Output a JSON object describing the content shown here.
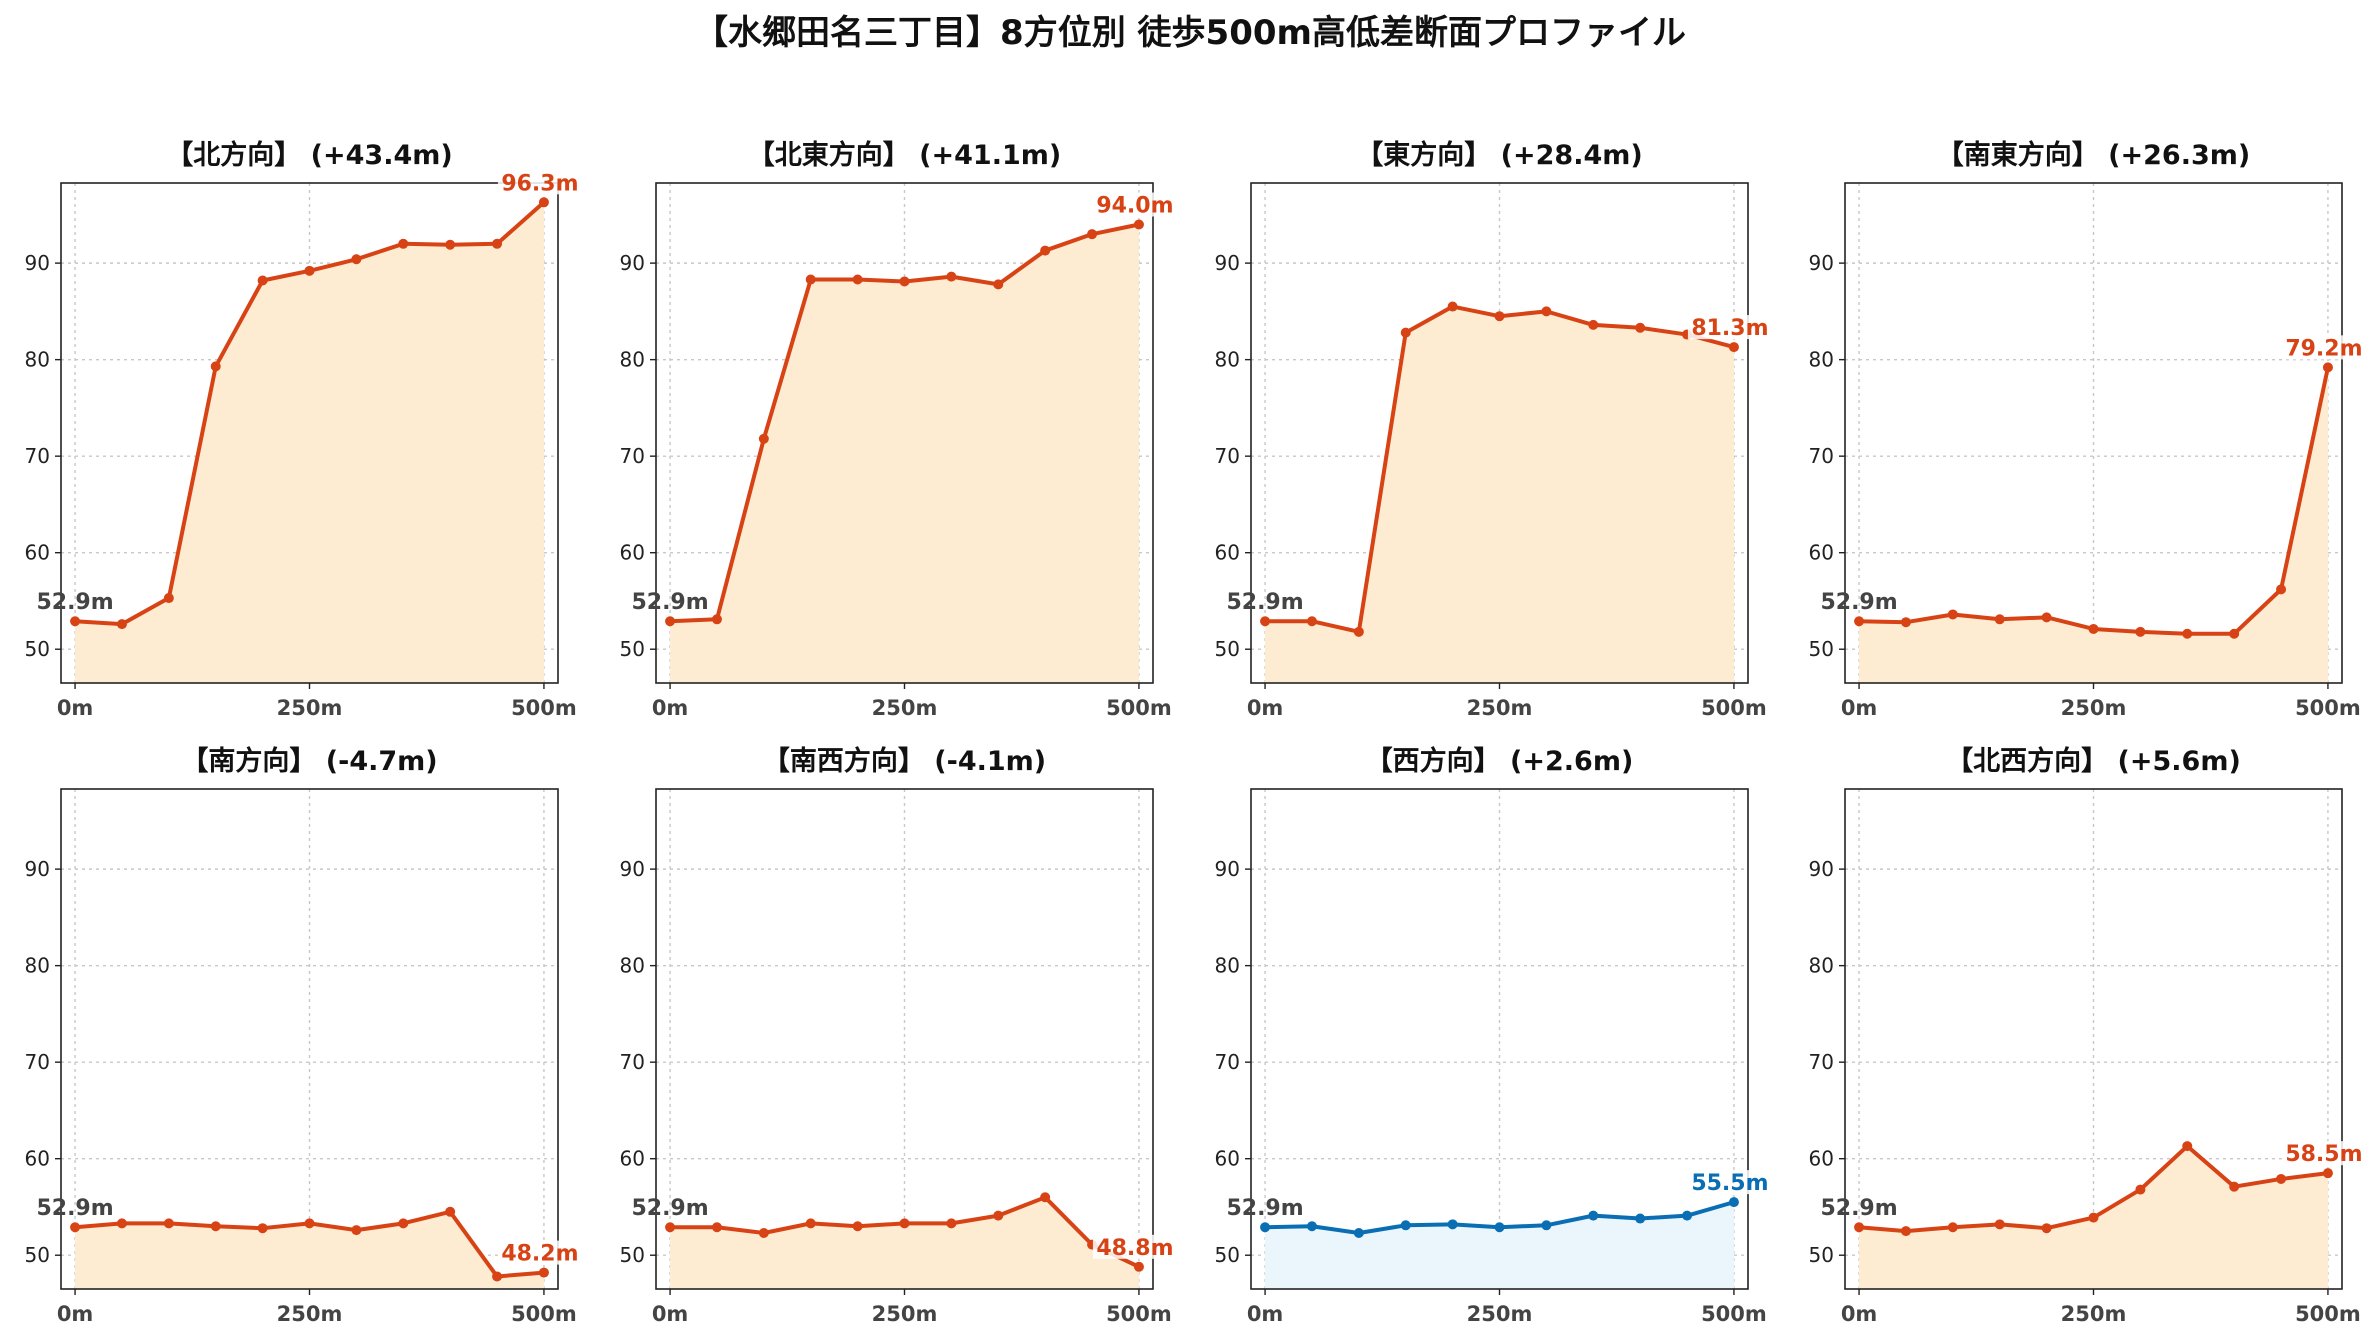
{
  "title": "【水郷田名三丁目】8方位別 徒歩500m高低差断面プロファイル",
  "colors": {
    "rise_line": "#d84315",
    "rise_fill": "#fdecd2",
    "flat_line": "#0a6eb4",
    "flat_fill": "#eaf6fc",
    "start_label": "#444444"
  },
  "chart_data": [
    {
      "type": "area",
      "title": "【北方向】 (+43.4m)",
      "color_key": "rise",
      "fill": true,
      "x": [
        0,
        50,
        100,
        150,
        200,
        250,
        300,
        350,
        400,
        450,
        500
      ],
      "y": [
        52.9,
        52.6,
        55.3,
        79.3,
        88.2,
        89.2,
        90.4,
        92.0,
        91.9,
        92.0,
        96.3
      ],
      "start_label": "52.9m",
      "end_label": "96.3m",
      "xticks": [
        "0m",
        "250m",
        "500m"
      ],
      "yticks": [
        50,
        60,
        70,
        80,
        90
      ],
      "xlim": [
        -15,
        515
      ],
      "ylim": [
        46.5,
        98.3
      ],
      "grid": true
    },
    {
      "type": "area",
      "title": "【北東方向】 (+41.1m)",
      "color_key": "rise",
      "fill": true,
      "x": [
        0,
        50,
        100,
        150,
        200,
        250,
        300,
        350,
        400,
        450,
        500
      ],
      "y": [
        52.9,
        53.1,
        71.8,
        88.3,
        88.3,
        88.1,
        88.6,
        87.8,
        91.3,
        93.0,
        94.0
      ],
      "start_label": "52.9m",
      "end_label": "94.0m",
      "xticks": [
        "0m",
        "250m",
        "500m"
      ],
      "yticks": [
        50,
        60,
        70,
        80,
        90
      ],
      "xlim": [
        -15,
        515
      ],
      "ylim": [
        46.5,
        98.3
      ],
      "grid": true
    },
    {
      "type": "area",
      "title": "【東方向】 (+28.4m)",
      "color_key": "rise",
      "fill": true,
      "x": [
        0,
        50,
        100,
        150,
        200,
        250,
        300,
        350,
        400,
        450,
        500
      ],
      "y": [
        52.9,
        52.9,
        51.8,
        82.8,
        85.5,
        84.5,
        85.0,
        83.6,
        83.3,
        82.6,
        81.3
      ],
      "start_label": "52.9m",
      "end_label": "81.3m",
      "xticks": [
        "0m",
        "250m",
        "500m"
      ],
      "yticks": [
        50,
        60,
        70,
        80,
        90
      ],
      "xlim": [
        -15,
        515
      ],
      "ylim": [
        46.5,
        98.3
      ],
      "grid": true
    },
    {
      "type": "area",
      "title": "【南東方向】 (+26.3m)",
      "color_key": "rise",
      "fill": true,
      "x": [
        0,
        50,
        100,
        150,
        200,
        250,
        300,
        350,
        400,
        450,
        500
      ],
      "y": [
        52.9,
        52.8,
        53.6,
        53.1,
        53.3,
        52.1,
        51.8,
        51.6,
        51.6,
        56.2,
        79.2
      ],
      "start_label": "52.9m",
      "end_label": "79.2m",
      "xticks": [
        "0m",
        "250m",
        "500m"
      ],
      "yticks": [
        50,
        60,
        70,
        80,
        90
      ],
      "xlim": [
        -15,
        515
      ],
      "ylim": [
        46.5,
        98.3
      ],
      "grid": true
    },
    {
      "type": "area",
      "title": "【南方向】 (-4.7m)",
      "color_key": "rise",
      "fill": true,
      "x": [
        0,
        50,
        100,
        150,
        200,
        250,
        300,
        350,
        400,
        450,
        500
      ],
      "y": [
        52.9,
        53.3,
        53.3,
        53.0,
        52.8,
        53.3,
        52.6,
        53.3,
        54.5,
        47.8,
        48.2
      ],
      "start_label": "52.9m",
      "end_label": "48.2m",
      "xticks": [
        "0m",
        "250m",
        "500m"
      ],
      "yticks": [
        50,
        60,
        70,
        80,
        90
      ],
      "xlim": [
        -15,
        515
      ],
      "ylim": [
        46.5,
        98.3
      ],
      "grid": true
    },
    {
      "type": "area",
      "title": "【南西方向】 (-4.1m)",
      "color_key": "rise",
      "fill": true,
      "x": [
        0,
        50,
        100,
        150,
        200,
        250,
        300,
        350,
        400,
        450,
        500
      ],
      "y": [
        52.9,
        52.9,
        52.3,
        53.3,
        53.0,
        53.3,
        53.3,
        54.1,
        56.0,
        51.1,
        48.8
      ],
      "start_label": "52.9m",
      "end_label": "48.8m",
      "xticks": [
        "0m",
        "250m",
        "500m"
      ],
      "yticks": [
        50,
        60,
        70,
        80,
        90
      ],
      "xlim": [
        -15,
        515
      ],
      "ylim": [
        46.5,
        98.3
      ],
      "grid": true
    },
    {
      "type": "area",
      "title": "【西方向】 (+2.6m)",
      "color_key": "flat",
      "fill": true,
      "x": [
        0,
        50,
        100,
        150,
        200,
        250,
        300,
        350,
        400,
        450,
        500
      ],
      "y": [
        52.9,
        53.0,
        52.3,
        53.1,
        53.2,
        52.9,
        53.1,
        54.1,
        53.8,
        54.1,
        55.5
      ],
      "start_label": "52.9m",
      "end_label": "55.5m",
      "xticks": [
        "0m",
        "250m",
        "500m"
      ],
      "yticks": [
        50,
        60,
        70,
        80,
        90
      ],
      "xlim": [
        -15,
        515
      ],
      "ylim": [
        46.5,
        98.3
      ],
      "grid": true
    },
    {
      "type": "area",
      "title": "【北西方向】 (+5.6m)",
      "color_key": "rise",
      "fill": true,
      "x": [
        0,
        50,
        100,
        150,
        200,
        250,
        300,
        350,
        400,
        450,
        500
      ],
      "y": [
        52.9,
        52.5,
        52.9,
        53.2,
        52.8,
        53.9,
        56.8,
        61.3,
        57.1,
        57.9,
        58.5
      ],
      "start_label": "52.9m",
      "end_label": "58.5m",
      "xticks": [
        "0m",
        "250m",
        "500m"
      ],
      "yticks": [
        50,
        60,
        70,
        80,
        90
      ],
      "xlim": [
        -15,
        515
      ],
      "ylim": [
        46.5,
        98.3
      ],
      "grid": true
    }
  ]
}
